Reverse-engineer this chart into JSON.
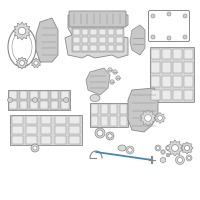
{
  "bg_color": "#ffffff",
  "ec": "#888888",
  "fc": "#d8d8d8",
  "fc2": "#c8c8c8",
  "highlight": "#4488bb",
  "figsize": [
    2.0,
    2.0
  ],
  "dpi": 100
}
